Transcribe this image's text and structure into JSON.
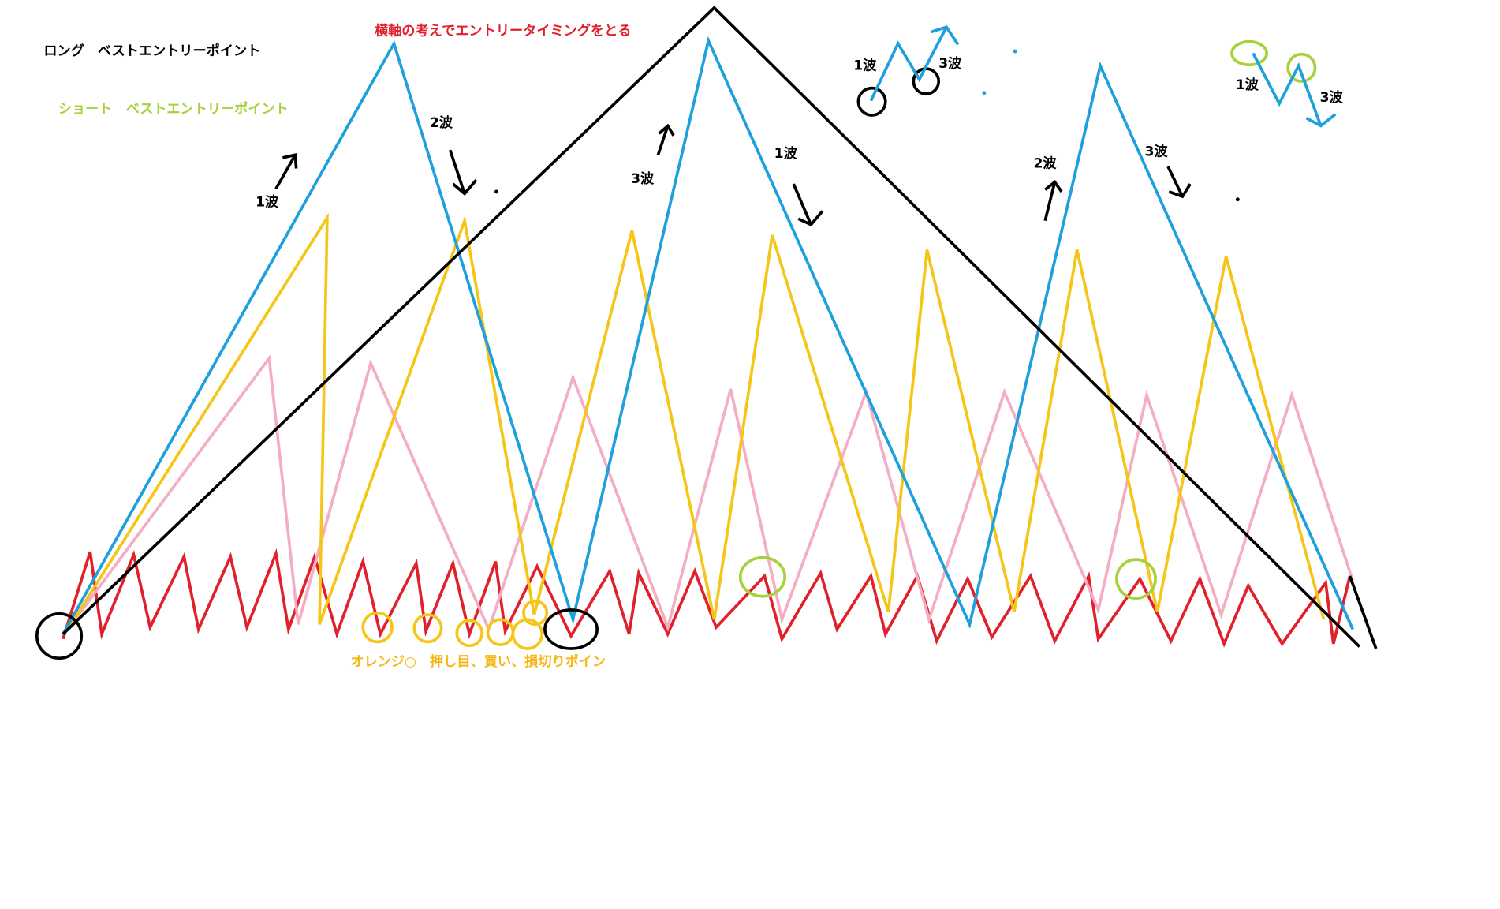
{
  "labels": {
    "long": "ロング　ベストエントリーポイント",
    "short": "ショート　ベストエントリーポイント",
    "heading": "横軸の考えでエントリータイミングをとる",
    "orange_note": "オレンジ○　押し目、買い、損切りポイン"
  },
  "waves": [
    {
      "label": "1波"
    },
    {
      "label": "2波"
    },
    {
      "label": "3波"
    },
    {
      "label": "1波"
    },
    {
      "label": "2波"
    },
    {
      "label": "3波"
    },
    {
      "label": "1波"
    },
    {
      "label": "3波"
    },
    {
      "label": "1波"
    },
    {
      "label": "3波"
    }
  ]
}
